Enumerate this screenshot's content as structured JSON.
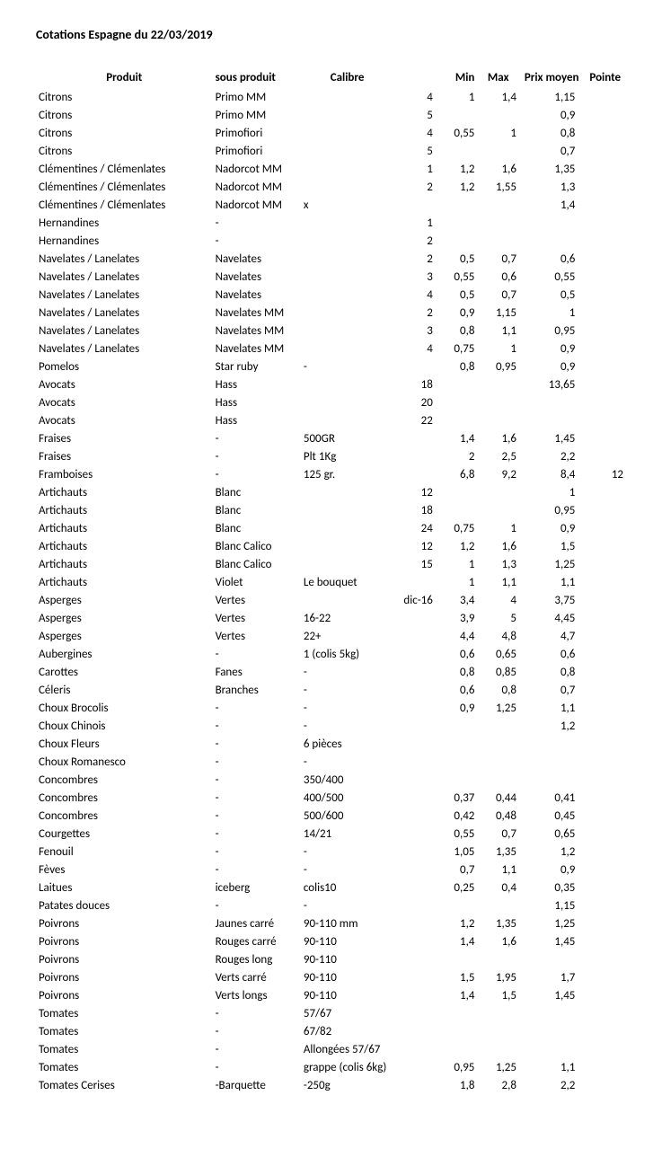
{
  "title": "Cotations Espagne du 22/03/2019",
  "columns": [
    "Produit",
    "sous produit",
    "Calibre",
    "",
    "Min",
    "Max",
    "Prix moyen",
    "Pointe"
  ],
  "rows": [
    [
      "Citrons",
      "Primo MM",
      "",
      "4",
      "1",
      "1,4",
      "1,15",
      ""
    ],
    [
      "Citrons",
      "Primo MM",
      "",
      "5",
      "",
      "",
      "0,9",
      ""
    ],
    [
      "Citrons",
      "Primofiori",
      "",
      "4",
      "0,55",
      "1",
      "0,8",
      ""
    ],
    [
      "Citrons",
      "Primofiori",
      "",
      "5",
      "",
      "",
      "0,7",
      ""
    ],
    [
      "Clémentines / Clémenlates",
      "Nadorcot MM",
      "",
      "1",
      "1,2",
      "1,6",
      "1,35",
      ""
    ],
    [
      "Clémentines / Clémenlates",
      "Nadorcot MM",
      "",
      "2",
      "1,2",
      "1,55",
      "1,3",
      ""
    ],
    [
      "Clémentines / Clémenlates",
      "Nadorcot MM",
      "x",
      "",
      "",
      "",
      "1,4",
      ""
    ],
    [
      "Hernandines",
      "-",
      "",
      "1",
      "",
      "",
      "",
      ""
    ],
    [
      "Hernandines",
      "-",
      "",
      "2",
      "",
      "",
      "",
      ""
    ],
    [
      "Navelates / Lanelates",
      "Navelates",
      "",
      "2",
      "0,5",
      "0,7",
      "0,6",
      ""
    ],
    [
      "Navelates / Lanelates",
      "Navelates",
      "",
      "3",
      "0,55",
      "0,6",
      "0,55",
      ""
    ],
    [
      "Navelates / Lanelates",
      "Navelates",
      "",
      "4",
      "0,5",
      "0,7",
      "0,5",
      ""
    ],
    [
      "Navelates / Lanelates",
      "Navelates MM",
      "",
      "2",
      "0,9",
      "1,15",
      "1",
      ""
    ],
    [
      "Navelates / Lanelates",
      "Navelates MM",
      "",
      "3",
      "0,8",
      "1,1",
      "0,95",
      ""
    ],
    [
      "Navelates / Lanelates",
      "Navelates MM",
      "",
      "4",
      "0,75",
      "1",
      "0,9",
      ""
    ],
    [
      "Pomelos",
      "Star ruby",
      "-",
      "",
      "0,8",
      "0,95",
      "0,9",
      ""
    ],
    [
      "Avocats",
      "Hass",
      "",
      "18",
      "",
      "",
      "13,65",
      ""
    ],
    [
      "Avocats",
      "Hass",
      "",
      "20",
      "",
      "",
      "",
      ""
    ],
    [
      "Avocats",
      "Hass",
      "",
      "22",
      "",
      "",
      "",
      ""
    ],
    [
      "Fraises",
      "-",
      "500GR",
      "",
      "1,4",
      "1,6",
      "1,45",
      ""
    ],
    [
      "Fraises",
      "-",
      "Plt 1Kg",
      "",
      "2",
      "2,5",
      "2,2",
      ""
    ],
    [
      "Framboises",
      "-",
      "125 gr.",
      "",
      "6,8",
      "9,2",
      "8,4",
      "12"
    ],
    [
      "Artichauts",
      "Blanc",
      "",
      "12",
      "",
      "",
      "1",
      ""
    ],
    [
      "Artichauts",
      "Blanc",
      "",
      "18",
      "",
      "",
      "0,95",
      ""
    ],
    [
      "Artichauts",
      "Blanc",
      "",
      "24",
      "0,75",
      "1",
      "0,9",
      ""
    ],
    [
      "Artichauts",
      "Blanc Calico",
      "",
      "12",
      "1,2",
      "1,6",
      "1,5",
      ""
    ],
    [
      "Artichauts",
      "Blanc Calico",
      "",
      "15",
      "1",
      "1,3",
      "1,25",
      ""
    ],
    [
      "Artichauts",
      "Violet",
      "Le bouquet",
      "",
      "1",
      "1,1",
      "1,1",
      ""
    ],
    [
      "Asperges",
      "Vertes",
      "",
      "dic-16",
      "3,4",
      "4",
      "3,75",
      ""
    ],
    [
      "Asperges",
      "Vertes",
      "16-22",
      "",
      "3,9",
      "5",
      "4,45",
      ""
    ],
    [
      "Asperges",
      "Vertes",
      "22+",
      "",
      "4,4",
      "4,8",
      "4,7",
      ""
    ],
    [
      "Aubergines",
      "-",
      "1 (colis 5kg)",
      "",
      "0,6",
      "0,65",
      "0,6",
      ""
    ],
    [
      "Carottes",
      "Fanes",
      "-",
      "",
      "0,8",
      "0,85",
      "0,8",
      ""
    ],
    [
      "Céleris",
      "Branches",
      "-",
      "",
      "0,6",
      "0,8",
      "0,7",
      ""
    ],
    [
      "Choux Brocolis",
      "-",
      "-",
      "",
      "0,9",
      "1,25",
      "1,1",
      ""
    ],
    [
      "Choux Chinois",
      "-",
      "-",
      "",
      "",
      "",
      "1,2",
      ""
    ],
    [
      "Choux Fleurs",
      "-",
      "6 pièces",
      "",
      "",
      "",
      "",
      ""
    ],
    [
      "Choux Romanesco",
      "-",
      "-",
      "",
      "",
      "",
      "",
      ""
    ],
    [
      "Concombres",
      "-",
      "350/400",
      "",
      "",
      "",
      "",
      ""
    ],
    [
      "Concombres",
      "-",
      "400/500",
      "",
      "0,37",
      "0,44",
      "0,41",
      ""
    ],
    [
      "Concombres",
      "-",
      "500/600",
      "",
      "0,42",
      "0,48",
      "0,45",
      ""
    ],
    [
      "Courgettes",
      "-",
      "14/21",
      "",
      "0,55",
      "0,7",
      "0,65",
      ""
    ],
    [
      "Fenouil",
      "-",
      "-",
      "",
      "1,05",
      "1,35",
      "1,2",
      ""
    ],
    [
      "Fèves",
      "-",
      "-",
      "",
      "0,7",
      "1,1",
      "0,9",
      ""
    ],
    [
      "Laitues",
      "iceberg",
      "colis10",
      "",
      "0,25",
      "0,4",
      "0,35",
      ""
    ],
    [
      "Patates douces",
      "-",
      "-",
      "",
      "",
      "",
      "1,15",
      ""
    ],
    [
      "Poivrons",
      "Jaunes carré",
      "90-110 mm",
      "",
      "1,2",
      "1,35",
      "1,25",
      ""
    ],
    [
      "Poivrons",
      "Rouges carré",
      "90-110",
      "",
      "1,4",
      "1,6",
      "1,45",
      ""
    ],
    [
      "Poivrons",
      "Rouges long",
      "90-110",
      "",
      "",
      "",
      "",
      ""
    ],
    [
      "Poivrons",
      "Verts carré",
      "90-110",
      "",
      "1,5",
      "1,95",
      "1,7",
      ""
    ],
    [
      "Poivrons",
      "Verts longs",
      "90-110",
      "",
      "1,4",
      "1,5",
      "1,45",
      ""
    ],
    [
      "Tomates",
      "-",
      "57/67",
      "",
      "",
      "",
      "",
      ""
    ],
    [
      "Tomates",
      "-",
      "67/82",
      "",
      "",
      "",
      "",
      ""
    ],
    [
      "Tomates",
      "-",
      "Allongées 57/67",
      "",
      "",
      "",
      "",
      ""
    ],
    [
      "Tomates",
      "-",
      "grappe (colis 6kg)",
      "",
      "0,95",
      "1,25",
      "1,1",
      ""
    ],
    [
      "Tomates Cerises",
      "-Barquette",
      "-250g",
      "",
      "1,8",
      "2,8",
      "2,2",
      ""
    ]
  ]
}
